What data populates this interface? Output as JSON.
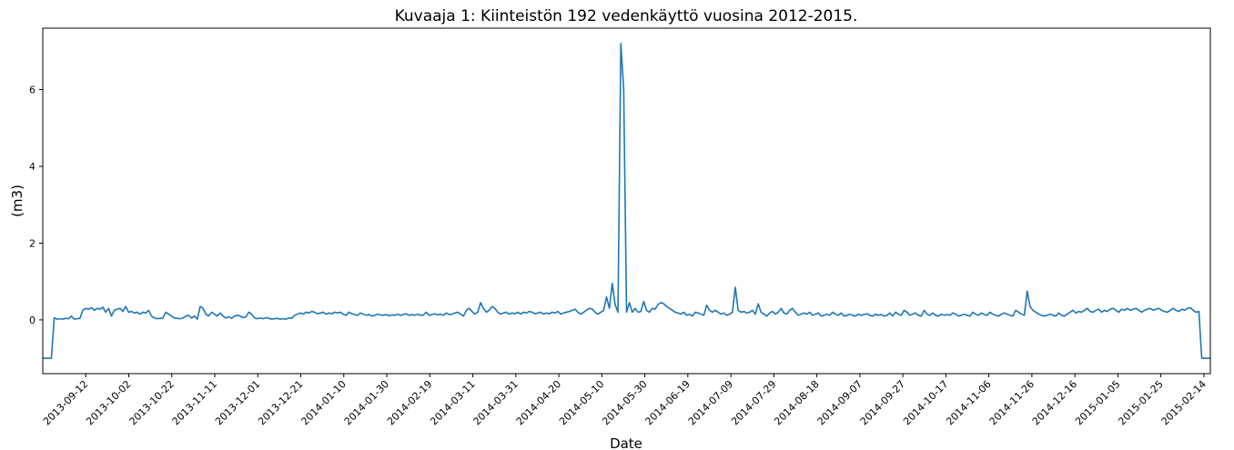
{
  "chart_data": {
    "type": "line",
    "title": "Kuvaaja 1: Kiinteistön 192 vedenkäyttö vuosina 2012-2015.",
    "xlabel": "Date",
    "ylabel": "(m3)",
    "x_start": "2013-08-23",
    "x_end": "2015-02-17",
    "xlim": [
      "2013-08-23",
      "2015-02-17"
    ],
    "ylim": [
      -1.4,
      7.6
    ],
    "yticks": [
      0,
      2,
      4,
      6
    ],
    "xticks": [
      "2013-09-12",
      "2013-10-02",
      "2013-10-22",
      "2013-11-11",
      "2013-12-01",
      "2013-12-21",
      "2014-01-10",
      "2014-01-30",
      "2014-02-19",
      "2014-03-11",
      "2014-03-31",
      "2014-04-20",
      "2014-05-10",
      "2014-05-30",
      "2014-06-19",
      "2014-07-09",
      "2014-07-29",
      "2014-08-18",
      "2014-09-07",
      "2014-09-27",
      "2014-10-17",
      "2014-11-06",
      "2014-11-26",
      "2014-12-16",
      "2015-01-05",
      "2015-01-25",
      "2015-02-14"
    ],
    "grid": false,
    "color": "#1f77b4",
    "series": [
      {
        "name": "",
        "values": [
          -1,
          -1,
          -1,
          -1,
          0.05,
          0.02,
          0.03,
          0.02,
          0.04,
          0.03,
          0.1,
          0.02,
          0.03,
          0.04,
          0.25,
          0.3,
          0.28,
          0.32,
          0.25,
          0.3,
          0.28,
          0.33,
          0.2,
          0.3,
          0.1,
          0.25,
          0.28,
          0.3,
          0.22,
          0.35,
          0.2,
          0.22,
          0.18,
          0.2,
          0.15,
          0.2,
          0.18,
          0.25,
          0.1,
          0.05,
          0.03,
          0.04,
          0.05,
          0.2,
          0.15,
          0.1,
          0.05,
          0.04,
          0.03,
          0.05,
          0.1,
          0.12,
          0.05,
          0.1,
          0.02,
          0.35,
          0.3,
          0.15,
          0.1,
          0.2,
          0.15,
          0.1,
          0.18,
          0.1,
          0.05,
          0.08,
          0.04,
          0.1,
          0.12,
          0.1,
          0.06,
          0.08,
          0.2,
          0.15,
          0.05,
          0.03,
          0.05,
          0.03,
          0.06,
          0.04,
          0.02,
          0.03,
          0.04,
          0.02,
          0.03,
          0.02,
          0.05,
          0.04,
          0.12,
          0.15,
          0.18,
          0.15,
          0.2,
          0.18,
          0.22,
          0.2,
          0.16,
          0.18,
          0.2,
          0.15,
          0.18,
          0.16,
          0.2,
          0.18,
          0.2,
          0.15,
          0.12,
          0.2,
          0.16,
          0.14,
          0.12,
          0.18,
          0.15,
          0.12,
          0.14,
          0.1,
          0.12,
          0.15,
          0.13,
          0.12,
          0.14,
          0.11,
          0.13,
          0.12,
          0.15,
          0.12,
          0.14,
          0.16,
          0.12,
          0.14,
          0.12,
          0.15,
          0.12,
          0.13,
          0.2,
          0.12,
          0.14,
          0.16,
          0.13,
          0.15,
          0.12,
          0.18,
          0.14,
          0.15,
          0.18,
          0.2,
          0.15,
          0.1,
          0.25,
          0.3,
          0.22,
          0.15,
          0.2,
          0.45,
          0.3,
          0.2,
          0.25,
          0.35,
          0.3,
          0.2,
          0.15,
          0.18,
          0.2,
          0.15,
          0.18,
          0.16,
          0.2,
          0.15,
          0.2,
          0.18,
          0.22,
          0.2,
          0.16,
          0.18,
          0.2,
          0.15,
          0.18,
          0.16,
          0.2,
          0.18,
          0.22,
          0.15,
          0.18,
          0.2,
          0.22,
          0.25,
          0.28,
          0.2,
          0.15,
          0.2,
          0.25,
          0.3,
          0.28,
          0.2,
          0.15,
          0.2,
          0.25,
          0.6,
          0.3,
          0.95,
          0.4,
          0.2,
          7.2,
          6.0,
          0.2,
          0.45,
          0.2,
          0.3,
          0.2,
          0.22,
          0.48,
          0.25,
          0.2,
          0.3,
          0.28,
          0.4,
          0.45,
          0.42,
          0.35,
          0.3,
          0.25,
          0.2,
          0.18,
          0.15,
          0.2,
          0.12,
          0.15,
          0.1,
          0.2,
          0.18,
          0.15,
          0.12,
          0.38,
          0.25,
          0.2,
          0.25,
          0.2,
          0.15,
          0.18,
          0.12,
          0.15,
          0.2,
          0.85,
          0.25,
          0.2,
          0.22,
          0.18,
          0.2,
          0.25,
          0.15,
          0.42,
          0.2,
          0.15,
          0.1,
          0.18,
          0.22,
          0.15,
          0.2,
          0.3,
          0.18,
          0.15,
          0.25,
          0.3,
          0.2,
          0.12,
          0.15,
          0.18,
          0.15,
          0.2,
          0.12,
          0.15,
          0.18,
          0.1,
          0.12,
          0.15,
          0.12,
          0.2,
          0.15,
          0.12,
          0.18,
          0.1,
          0.12,
          0.15,
          0.12,
          0.1,
          0.15,
          0.12,
          0.14,
          0.16,
          0.12,
          0.1,
          0.15,
          0.12,
          0.14,
          0.1,
          0.12,
          0.18,
          0.1,
          0.2,
          0.15,
          0.12,
          0.25,
          0.2,
          0.12,
          0.15,
          0.18,
          0.12,
          0.1,
          0.25,
          0.15,
          0.12,
          0.18,
          0.12,
          0.1,
          0.15,
          0.12,
          0.14,
          0.12,
          0.18,
          0.15,
          0.1,
          0.12,
          0.15,
          0.12,
          0.1,
          0.2,
          0.15,
          0.12,
          0.18,
          0.14,
          0.12,
          0.2,
          0.15,
          0.12,
          0.1,
          0.15,
          0.18,
          0.15,
          0.12,
          0.1,
          0.25,
          0.2,
          0.15,
          0.12,
          0.75,
          0.35,
          0.25,
          0.2,
          0.15,
          0.12,
          0.1,
          0.12,
          0.15,
          0.12,
          0.1,
          0.18,
          0.12,
          0.1,
          0.15,
          0.2,
          0.25,
          0.18,
          0.22,
          0.2,
          0.25,
          0.3,
          0.22,
          0.2,
          0.25,
          0.28,
          0.2,
          0.25,
          0.22,
          0.28,
          0.3,
          0.25,
          0.2,
          0.28,
          0.25,
          0.3,
          0.25,
          0.28,
          0.3,
          0.25,
          0.2,
          0.25,
          0.28,
          0.3,
          0.25,
          0.28,
          0.3,
          0.25,
          0.22,
          0.2,
          0.25,
          0.3,
          0.25,
          0.22,
          0.28,
          0.25,
          0.3,
          0.32,
          0.25,
          0.2,
          0.22,
          -1,
          -1,
          -1,
          -1
        ]
      }
    ]
  }
}
